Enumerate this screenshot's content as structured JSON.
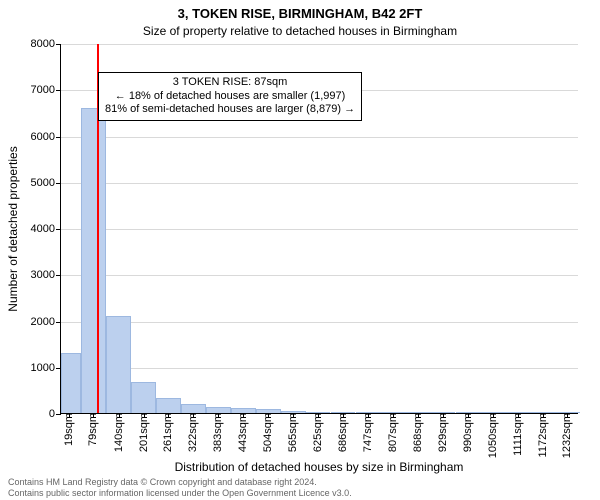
{
  "title_line1": "3, TOKEN RISE, BIRMINGHAM, B42 2FT",
  "title_line2": "Size of property relative to detached houses in Birmingham",
  "ylabel": "Number of detached properties",
  "xlabel": "Distribution of detached houses by size in Birmingham",
  "footer_line1": "Contains HM Land Registry data © Crown copyright and database right 2024.",
  "footer_line2": "Contains public sector information licensed under the Open Government Licence v3.0.",
  "chart": {
    "type": "histogram",
    "background_color": "#ffffff",
    "grid_color": "#d9d9d9",
    "axis_color": "#000000",
    "bar_fill": "#bcd0ee",
    "bar_border": "#9db8e0",
    "highlight_line_color": "#ff0000",
    "highlight_line_width": 2,
    "title_fontsize": 13,
    "subtitle_fontsize": 12,
    "axis_label_fontsize": 12,
    "tick_fontsize": 11,
    "annotation_fontsize": 11,
    "footer_fontsize": 9,
    "footer_color": "#666666",
    "ylim": [
      0,
      8000
    ],
    "ytick_step": 1000,
    "yticks": [
      0,
      1000,
      2000,
      3000,
      4000,
      5000,
      6000,
      7000,
      8000
    ],
    "xlim_sqm": [
      0,
      1260
    ],
    "xticks_sqm": [
      19,
      79,
      140,
      201,
      261,
      322,
      383,
      443,
      504,
      565,
      625,
      686,
      747,
      807,
      868,
      929,
      990,
      1050,
      1111,
      1172,
      1232
    ],
    "xtick_suffix": "sqm",
    "bin_width_sqm": 60.6,
    "values": [
      1300,
      6600,
      2100,
      680,
      320,
      200,
      130,
      100,
      80,
      50,
      30,
      20,
      15,
      10,
      8,
      6,
      4,
      3,
      2,
      2,
      1
    ],
    "highlight_value_sqm": 87,
    "annotation": {
      "line1": "3 TOKEN RISE: 87sqm",
      "line2": "← 18% of detached houses are smaller (1,997)",
      "line3": "81% of semi-detached houses are larger (8,879) →",
      "left_sqm": 90,
      "top_yvalue": 7400
    }
  }
}
